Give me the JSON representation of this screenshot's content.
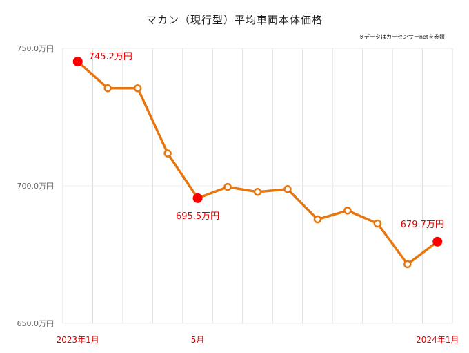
{
  "chart_data": {
    "type": "line",
    "title": "マカン（現行型）平均車両本体価格",
    "note": "※データはカーセンサーnetを参照",
    "x_count": 13,
    "x_tick_labels": [
      {
        "index": 0,
        "label": "2023年1月"
      },
      {
        "index": 4,
        "label": "5月"
      },
      {
        "index": 12,
        "label": "2024年1月"
      }
    ],
    "values": [
      745.2,
      735.5,
      735.5,
      711.8,
      695.5,
      699.6,
      697.8,
      698.8,
      687.8,
      691.0,
      686.3,
      671.5,
      679.7
    ],
    "highlight_indices": [
      0,
      4,
      12
    ],
    "data_labels": [
      {
        "index": 0,
        "text": "745.2万円"
      },
      {
        "index": 4,
        "text": "695.5万円"
      },
      {
        "index": 12,
        "text": "679.7万円"
      }
    ],
    "ylim": [
      650,
      750
    ],
    "y_ticks": [
      {
        "value": 750,
        "label": "750.0万円"
      },
      {
        "value": 700,
        "label": "700.0万円"
      },
      {
        "value": 650,
        "label": "650.0万円"
      }
    ],
    "grid": true,
    "line_color": "#e8760e",
    "highlight_color": "#ff0000",
    "label_color": "#e00000"
  }
}
